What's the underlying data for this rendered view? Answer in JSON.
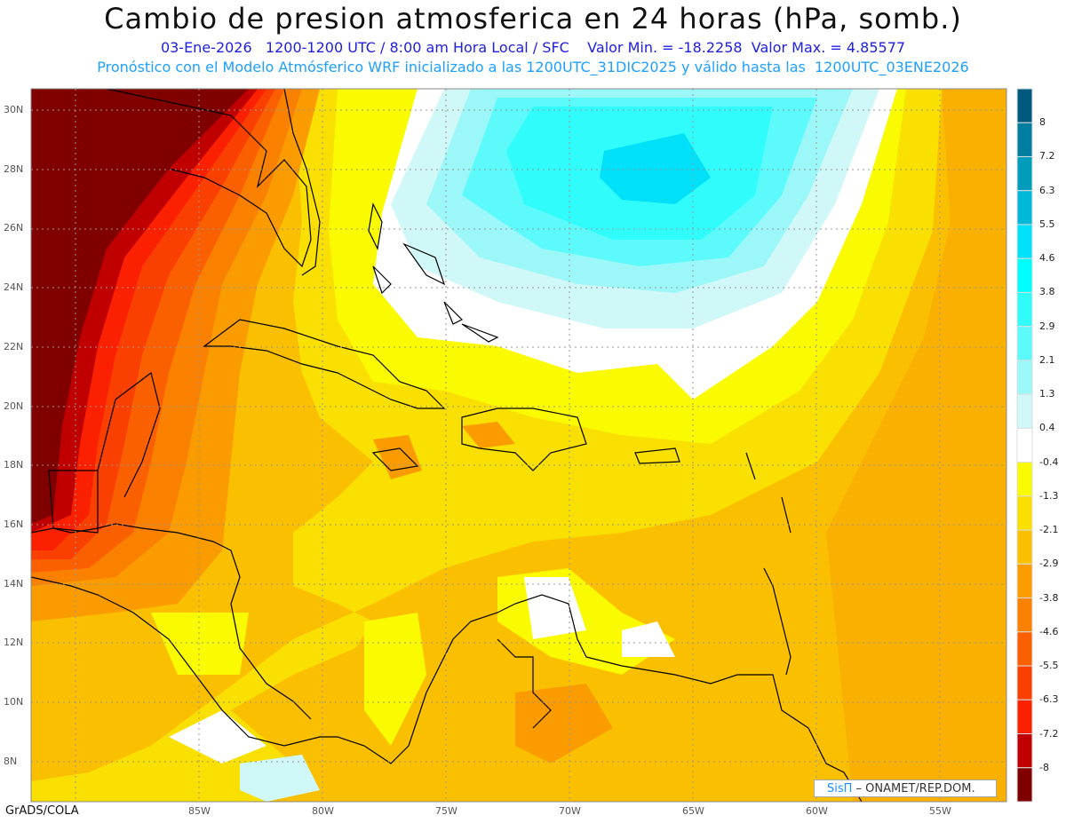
{
  "title": "Cambio de presion atmosferica en 24 horas (hPa, somb.)",
  "subtitle1": "03-Ene-2026   1200-1200 UTC / 8:00 am Hora Local / SFC    Valor Min. = -18.2258  Valor Max. = 4.85577",
  "subtitle2": "Pronóstico con el Modelo Atmósferico WRF inicializado a las 1200UTC_31DIC2025 y válido hasta las  1200UTC_03ENE2026",
  "lat_labels": [
    "30N",
    "28N",
    "26N",
    "24N",
    "22N",
    "20N",
    "18N",
    "16N",
    "14N",
    "12N",
    "10N",
    "8N"
  ],
  "lon_labels": [
    "85W",
    "80W",
    "75W",
    "70W",
    "65W",
    "60W",
    "55W"
  ],
  "colorbar": {
    "labels": [
      "8",
      "7.2",
      "6.3",
      "5.5",
      "4.6",
      "3.8",
      "2.9",
      "2.1",
      "1.3",
      "0.4",
      "-0.4",
      "-1.3",
      "-2.1",
      "-2.9",
      "-3.8",
      "-4.6",
      "-5.5",
      "-6.3",
      "-7.2",
      "-8"
    ],
    "colors": [
      "#005a80",
      "#007ea0",
      "#009cbb",
      "#00b8d8",
      "#00e0f8",
      "#00fefe",
      "#30fcfc",
      "#5cfafa",
      "#9cf8f8",
      "#d0f8f8",
      "#ffffff",
      "#fafa00",
      "#fae000",
      "#fac000",
      "#fa9c00",
      "#fa8000",
      "#fa6000",
      "#fa4000",
      "#fa2000",
      "#c00000",
      "#800000"
    ]
  },
  "credit": {
    "brand": "SisΠ",
    "text": " – ONAMET/REP.DOM."
  },
  "footer": "GrADS/COLA"
}
